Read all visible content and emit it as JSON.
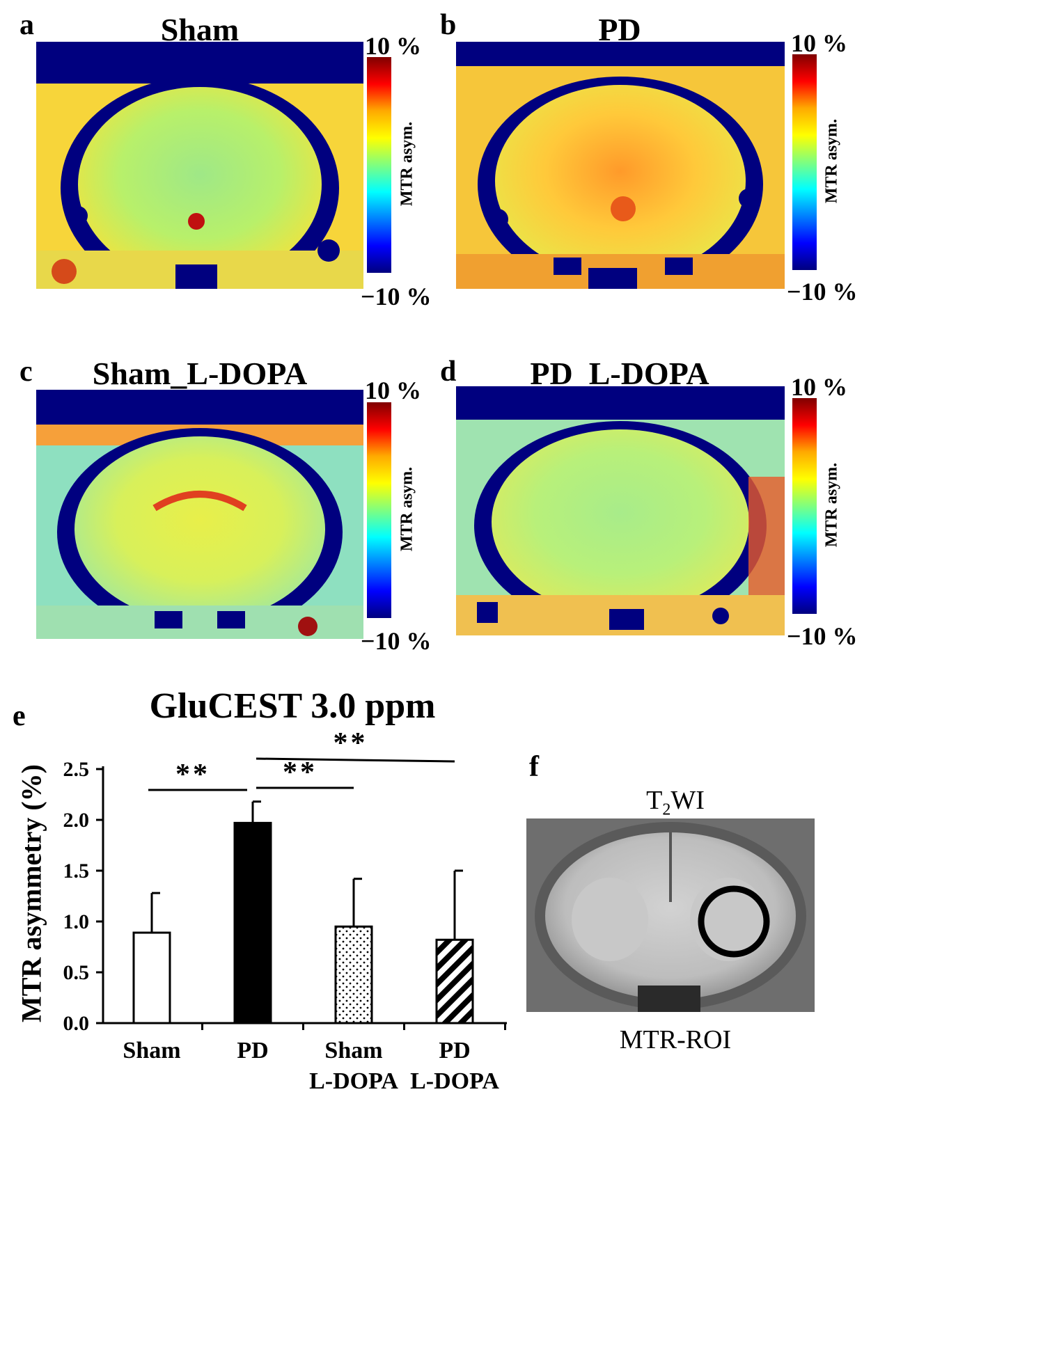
{
  "colors": {
    "bg": "#00007f",
    "jet_low": "#0000ff",
    "jet_mid": "#aaff55",
    "jet_high": "#800000",
    "bar_pd": "#000000"
  },
  "panels": [
    {
      "letter": "a",
      "title": "Sham",
      "scale_max": "10 %",
      "scale_min": "−10 %",
      "axis_label": "MTR asym."
    },
    {
      "letter": "b",
      "title": "PD",
      "scale_max": "10 %",
      "scale_min": "−10 %",
      "axis_label": "MTR asym."
    },
    {
      "letter": "c",
      "title": "Sham_L-DOPA",
      "scale_max": "10 %",
      "scale_min": "−10 %",
      "axis_label": "MTR asym."
    },
    {
      "letter": "d",
      "title": "PD_L-DOPA",
      "scale_max": "10 %",
      "scale_min": "−10 %",
      "axis_label": "MTR asym."
    }
  ],
  "chart_data": {
    "type": "bar",
    "letter": "e",
    "title": "GluCEST 3.0 ppm",
    "ylabel": "MTR asymmetry (%)",
    "xlabel": "",
    "ylim": [
      0,
      2.5
    ],
    "yticks": [
      "0.0",
      "0.5",
      "1.0",
      "1.5",
      "2.0",
      "2.5"
    ],
    "categories": [
      {
        "line1": "Sham",
        "line2": ""
      },
      {
        "line1": "PD",
        "line2": ""
      },
      {
        "line1": "Sham",
        "line2": "L-DOPA"
      },
      {
        "line1": "PD",
        "line2": "L-DOPA"
      }
    ],
    "values": [
      0.89,
      1.97,
      0.95,
      0.82
    ],
    "errors": [
      0.39,
      0.21,
      0.47,
      0.68
    ],
    "fills": [
      "open",
      "solid",
      "dotted",
      "hatched"
    ],
    "significance": [
      {
        "label": "**",
        "from": 0,
        "to": 1
      },
      {
        "label": "**",
        "from": 1,
        "to": 2
      },
      {
        "label": "**",
        "from": 1,
        "to": 3
      }
    ]
  },
  "panel_f": {
    "letter": "f",
    "top_label_main": "T",
    "top_label_sub": "2",
    "top_label_tail": "WI",
    "bottom_label": "MTR-ROI"
  }
}
